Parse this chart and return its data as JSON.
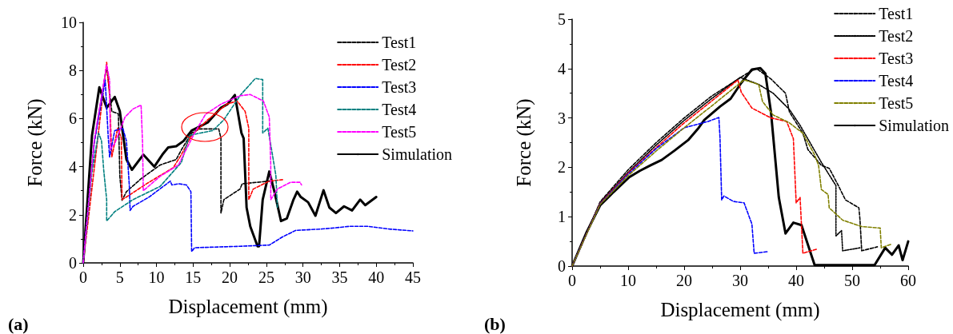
{
  "chart_data": [
    {
      "type": "line",
      "xlabel": "Displacement (mm)",
      "ylabel": "Force (kN)",
      "annotations": [
        "(a)"
      ],
      "legend": "top right",
      "xlim": [
        0,
        45
      ],
      "xticks": [
        0,
        5,
        10,
        15,
        20,
        25,
        30,
        35,
        40,
        45
      ],
      "ylim": [
        0,
        10
      ],
      "yticks": [
        0,
        2,
        4,
        6,
        8,
        10
      ],
      "series": [
        {
          "name": "Test1",
          "color": "#000000",
          "line_style": "dashed",
          "x": [
            0,
            1.5,
            3.2,
            3.9,
            4.8,
            5.0,
            5.3,
            5.9,
            7.9,
            10.5,
            12.7,
            13.4,
            14.8,
            15.9,
            18.5,
            18.8,
            18.8,
            19.2,
            21.4,
            21.7,
            25.4,
            25.9
          ],
          "values": [
            0,
            5.0,
            8.17,
            6.3,
            6.2,
            3.6,
            2.6,
            2.96,
            3.5,
            4.07,
            4.3,
            4.7,
            5.4,
            5.57,
            5.57,
            5.18,
            2.07,
            2.63,
            3.07,
            3.29,
            3.4,
            3.4
          ]
        },
        {
          "name": "Test2",
          "color": "#ff0000",
          "line_style": "dashed",
          "x": [
            0,
            3.2,
            3.6,
            3.9,
            4.7,
            5.2,
            5.3,
            5.9,
            8.7,
            12.3,
            13.4,
            14.8,
            17.0,
            19.6,
            21.0,
            22.1,
            22.6,
            22.6,
            23.2,
            25.4,
            27.2
          ],
          "values": [
            0,
            8.34,
            6.95,
            4.4,
            5.6,
            5.2,
            2.63,
            2.74,
            3.3,
            3.96,
            4.5,
            5.3,
            5.95,
            6.6,
            6.73,
            6.3,
            5.6,
            2.63,
            3.07,
            3.4,
            3.46
          ]
        },
        {
          "name": "Test3",
          "color": "#0000ff",
          "line_style": "dashed",
          "x": [
            0,
            1.5,
            3.0,
            3.4,
            3.6,
            4.3,
            5.4,
            5.9,
            6.3,
            6.4,
            6.8,
            9.0,
            11.9,
            12.1,
            13.0,
            14.1,
            14.7,
            14.8,
            15.2,
            21.4,
            25.4,
            27.2,
            29.0,
            32.6,
            34.5,
            36.3,
            38.8,
            42,
            45
          ],
          "values": [
            0,
            5.0,
            7.6,
            5.3,
            4.4,
            5.5,
            5.6,
            5.07,
            3.18,
            2.18,
            2.35,
            2.74,
            3.4,
            3.24,
            3.29,
            3.24,
            2.96,
            0.47,
            0.63,
            0.69,
            0.74,
            1.08,
            1.35,
            1.41,
            1.46,
            1.52,
            1.52,
            1.4,
            1.33
          ]
        },
        {
          "name": "Test4",
          "color": "#008080",
          "line_style": "dashed",
          "x": [
            0,
            1.2,
            2.1,
            2.5,
            2.8,
            3.2,
            3.2,
            4.3,
            6.8,
            10.5,
            13.4,
            14.5,
            16.0,
            17.7,
            19.2,
            21.4,
            21.7,
            23.5,
            24.5,
            24.5,
            25.2,
            25.7,
            26.3,
            26.5
          ],
          "values": [
            0,
            3.8,
            5.4,
            5.07,
            3.85,
            2.63,
            1.74,
            2.13,
            2.63,
            3.18,
            4.18,
            5.3,
            5.4,
            5.5,
            5.95,
            6.95,
            7.06,
            7.67,
            7.62,
            5.4,
            5.6,
            4.73,
            3.63,
            2.3
          ]
        },
        {
          "name": "Test5",
          "color": "#ff00ff",
          "line_style": "dashed",
          "x": [
            0,
            1.5,
            3.2,
            3.6,
            3.7,
            4.3,
            5.0,
            5.7,
            6.8,
            7.9,
            8.1,
            8.2,
            10.5,
            13.0,
            13.9,
            15.2,
            16.7,
            18.8,
            21.4,
            22.8,
            24.6,
            25.4,
            25.6,
            25.6,
            26.5,
            28.3,
            29.6,
            29.8
          ],
          "values": [
            0,
            5.1,
            8.23,
            7.6,
            4.73,
            4.96,
            5.5,
            6.06,
            6.4,
            6.56,
            4.96,
            3.0,
            3.6,
            4.07,
            4.62,
            5.4,
            6.18,
            6.6,
            6.95,
            7.0,
            6.73,
            6.06,
            4.07,
            2.63,
            3.07,
            3.35,
            3.35,
            3.24
          ]
        },
        {
          "name": "Simulation",
          "color": "#000000",
          "line_style": "solid",
          "x": [
            0,
            1.2,
            2.2,
            3.2,
            4.3,
            5.0,
            5.9,
            6.65,
            8.2,
            9.7,
            10.8,
            11.6,
            12.7,
            13.7,
            14.8,
            17.0,
            18.8,
            19.7,
            20.7,
            21.6,
            21.9,
            22.3,
            22.8,
            23.8,
            24.0,
            24.5,
            25.4,
            26.1,
            27.0,
            27.8,
            28.7,
            29.2,
            29.7,
            30.7,
            31.7,
            32.8,
            33.6,
            34.5,
            35.6,
            36.7,
            37.8,
            38.5,
            40.0
          ],
          "values": [
            0,
            5.3,
            7.3,
            6.45,
            6.9,
            6.3,
            4.3,
            3.87,
            4.5,
            4.0,
            4.5,
            4.8,
            4.85,
            5.07,
            5.5,
            5.84,
            6.45,
            6.6,
            6.98,
            5.4,
            5.18,
            2.3,
            1.52,
            0.69,
            0.69,
            2.63,
            3.8,
            2.96,
            1.74,
            1.85,
            2.63,
            2.96,
            2.74,
            2.52,
            1.96,
            3.02,
            2.3,
            2.07,
            2.35,
            2.18,
            2.63,
            2.4,
            2.74
          ]
        }
      ]
    },
    {
      "type": "line",
      "xlabel": "Displacement (mm)",
      "ylabel": "Force (kN)",
      "annotations": [
        "(b)"
      ],
      "legend": "top right",
      "xlim": [
        0,
        60
      ],
      "xticks": [
        0,
        10,
        20,
        30,
        40,
        50,
        60
      ],
      "ylim": [
        0,
        5
      ],
      "yticks": [
        0,
        1,
        2,
        3,
        4,
        5
      ],
      "series": [
        {
          "name": "Test1",
          "color": "#000000",
          "line_style": "dashed",
          "x": [
            0,
            5,
            10,
            15,
            20,
            25,
            31.2,
            32.9,
            35.5,
            38.1,
            38.8,
            41.2,
            42.1,
            44.5,
            45.9,
            47.4,
            48.8,
            51.2,
            51.4,
            51.7,
            54.5
          ],
          "values": [
            0,
            1.3,
            1.95,
            2.5,
            3.0,
            3.45,
            3.9,
            4.0,
            3.79,
            3.5,
            3.12,
            2.69,
            2.36,
            2.04,
            1.98,
            1.66,
            1.34,
            1.18,
            0.93,
            0.31,
            0.39
          ]
        },
        {
          "name": "Test2",
          "color": "#000000",
          "line_style": "dotted",
          "x": [
            0,
            5,
            10,
            15,
            20,
            25,
            30,
            33.3,
            35.9,
            38.8,
            40.7,
            44.5,
            47.1,
            47.1,
            48.1,
            48.3,
            51.4
          ],
          "values": [
            0,
            1.28,
            1.9,
            2.45,
            2.95,
            3.4,
            3.82,
            3.68,
            3.5,
            3.17,
            2.85,
            2.1,
            1.63,
            0.61,
            0.72,
            0.31,
            0.37
          ]
        },
        {
          "name": "Test3",
          "color": "#ff0000",
          "line_style": "dashed",
          "x": [
            0,
            5,
            10,
            15,
            20,
            25,
            29.6,
            30.2,
            32.1,
            35.5,
            38.3,
            39.5,
            40.0,
            40.7,
            41.2,
            43.6
          ],
          "values": [
            0,
            1.27,
            1.88,
            2.4,
            2.9,
            3.35,
            3.77,
            3.52,
            3.2,
            3.0,
            2.93,
            2.58,
            1.28,
            1.39,
            0.26,
            0.34
          ]
        },
        {
          "name": "Test4",
          "color": "#0000ff",
          "line_style": "dashed",
          "x": [
            0,
            5,
            10,
            15,
            20,
            24.3,
            26.2,
            26.4,
            26.7,
            27.1,
            28.8,
            30.7,
            32.1,
            32.5,
            34.8
          ],
          "values": [
            0,
            1.26,
            1.86,
            2.38,
            2.8,
            2.93,
            3.01,
            2.6,
            1.34,
            1.42,
            1.31,
            1.28,
            0.85,
            0.26,
            0.29
          ]
        },
        {
          "name": "Test5",
          "color": "#808000",
          "line_style": "dashed",
          "x": [
            0,
            5,
            10,
            15,
            20,
            25,
            30.7,
            33.3,
            34.0,
            35.9,
            38.8,
            41.2,
            43.3,
            44.0,
            44.5,
            45.7,
            45.9,
            48.3,
            51.7,
            55.0,
            55.2,
            56.9
          ],
          "values": [
            0,
            1.25,
            1.83,
            2.33,
            2.8,
            3.25,
            3.77,
            3.68,
            3.33,
            3.06,
            2.9,
            2.69,
            2.25,
            2.04,
            1.55,
            1.45,
            1.18,
            0.93,
            0.8,
            0.77,
            0.37,
            0.44
          ]
        },
        {
          "name": "Simulation",
          "color": "#000000",
          "line_style": "solid",
          "x": [
            0,
            2.6,
            5.0,
            7.4,
            10.2,
            12.1,
            14.0,
            16.0,
            18.3,
            20.7,
            22.6,
            23.6,
            26.4,
            28.3,
            30.2,
            32.1,
            33.6,
            34.5,
            35.5,
            36.9,
            38.1,
            39.5,
            40.95,
            43.3,
            54.0,
            55.9,
            57.1,
            58.3,
            59.0,
            60.0
          ],
          "values": [
            0,
            0.69,
            1.23,
            1.5,
            1.8,
            1.93,
            2.04,
            2.15,
            2.34,
            2.55,
            2.8,
            2.96,
            3.23,
            3.39,
            3.71,
            3.98,
            4.01,
            3.9,
            3.12,
            1.39,
            0.66,
            0.88,
            0.83,
            0.02,
            0.02,
            0.37,
            0.23,
            0.42,
            0.12,
            0.5
          ]
        }
      ]
    }
  ]
}
